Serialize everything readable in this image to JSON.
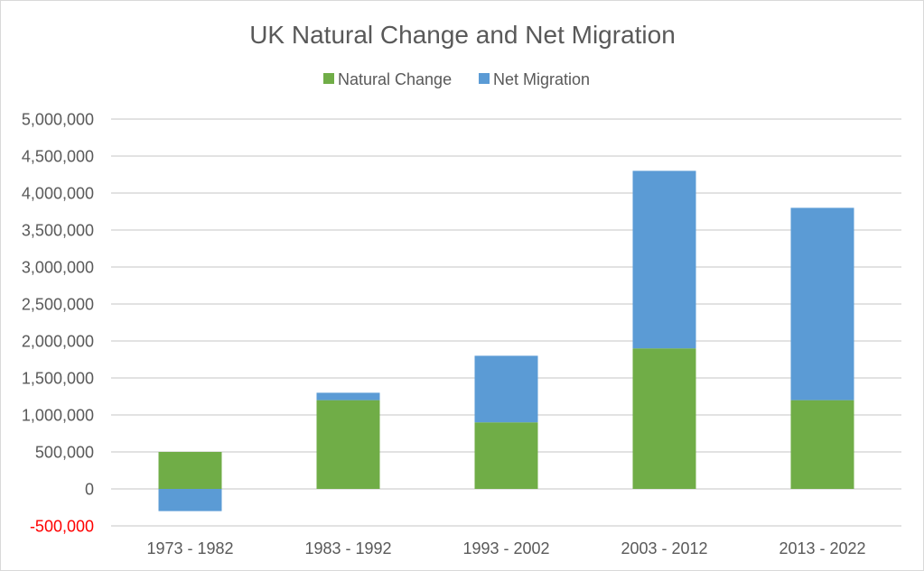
{
  "chart_data": {
    "type": "bar",
    "stacked": true,
    "title": "UK Natural Change and Net Migration",
    "xlabel": "",
    "ylabel": "",
    "categories": [
      "1973 - 1982",
      "1983 - 1992",
      "1993 - 2002",
      "2003 - 2012",
      "2013 - 2022"
    ],
    "series": [
      {
        "name": "Natural Change",
        "color": "#70ad47",
        "values": [
          500000,
          1200000,
          900000,
          1900000,
          1200000
        ]
      },
      {
        "name": "Net Migration",
        "color": "#5b9bd5",
        "values": [
          -300000,
          100000,
          900000,
          2400000,
          2600000
        ]
      }
    ],
    "ylim": [
      -500000,
      5000000
    ],
    "yticks": [
      -500000,
      0,
      500000,
      1000000,
      1500000,
      2000000,
      2500000,
      3000000,
      3500000,
      4000000,
      4500000,
      5000000
    ],
    "ytick_labels": [
      "-500,000",
      "0",
      "500,000",
      "1,000,000",
      "1,500,000",
      "2,000,000",
      "2,500,000",
      "3,000,000",
      "3,500,000",
      "4,000,000",
      "4,500,000",
      "5,000,000"
    ],
    "negative_tick_color": "#ff0000",
    "grid": true,
    "legend": "top"
  }
}
